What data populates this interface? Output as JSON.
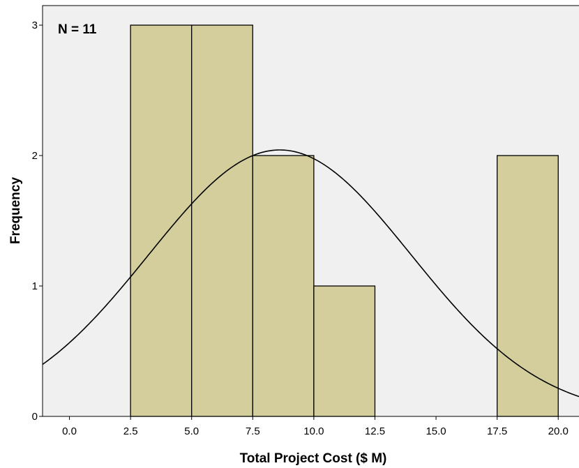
{
  "chart_data": {
    "type": "bar",
    "subtype": "histogram",
    "annotation": "N = 11",
    "xlabel": "Total Project Cost ($ M)",
    "ylabel": "Frequency",
    "bins": [
      {
        "start": 2.5,
        "end": 5.0,
        "count": 3
      },
      {
        "start": 5.0,
        "end": 7.5,
        "count": 3
      },
      {
        "start": 7.5,
        "end": 10.0,
        "count": 2
      },
      {
        "start": 10.0,
        "end": 12.5,
        "count": 1
      },
      {
        "start": 12.5,
        "end": 15.0,
        "count": 0
      },
      {
        "start": 15.0,
        "end": 17.5,
        "count": 0
      },
      {
        "start": 17.5,
        "end": 20.0,
        "count": 2
      }
    ],
    "x_ticks": [
      "0.0",
      "2.5",
      "5.0",
      "7.5",
      "10.0",
      "12.5",
      "15.0",
      "17.5",
      "20.0"
    ],
    "y_ticks": [
      "0",
      "1",
      "2",
      "3"
    ],
    "xlim": [
      -1.1,
      20.85
    ],
    "ylim": [
      0,
      3.15
    ],
    "normal_curve": {
      "mean": 8.61,
      "std_dev": 5.37
    },
    "grid": false,
    "colors": {
      "bar_fill": "#d3ce9b",
      "bar_stroke": "#000000",
      "plot_background": "#f0f0f0",
      "curve": "#000000"
    }
  }
}
